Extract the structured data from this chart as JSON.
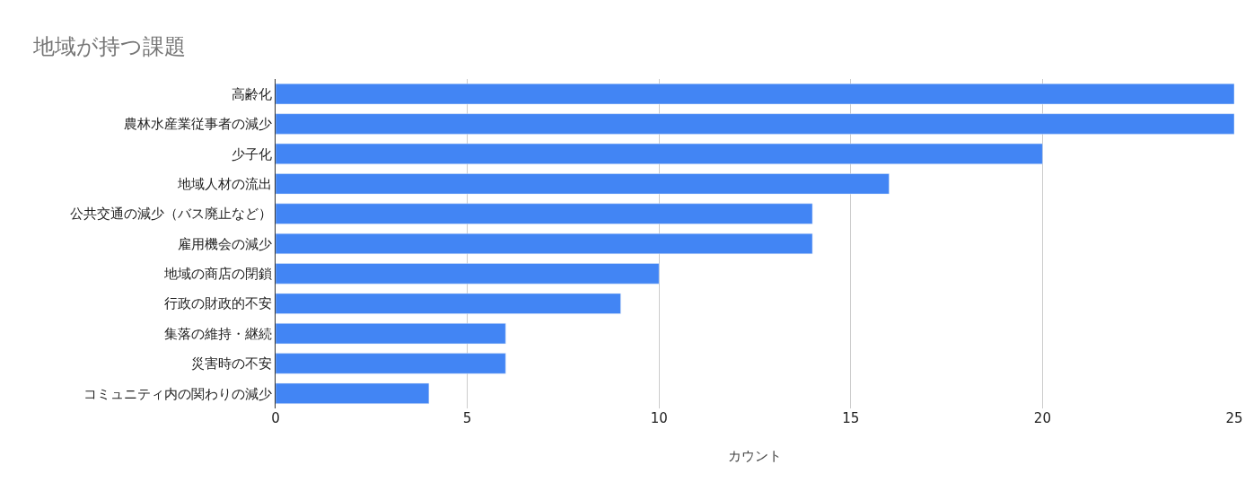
{
  "chart_data": {
    "type": "bar",
    "orientation": "horizontal",
    "title": "地域が持つ課題",
    "xlabel": "カウント",
    "categories": [
      "高齢化",
      "農林水産業従事者の減少",
      "少子化",
      "地域人材の流出",
      "公共交通の減少（バス廃止など）",
      "雇用機会の減少",
      "地域の商店の閉鎖",
      "行政の財政的不安",
      "集落の維持・継続",
      "災害時の不安",
      "コミュニティ内の関わりの減少"
    ],
    "values": [
      25,
      25,
      20,
      16,
      14,
      14,
      10,
      9,
      6,
      6,
      4
    ],
    "color": "#4285f4",
    "xlim": [
      0,
      25
    ],
    "xticks": [
      0,
      5,
      10,
      15,
      20,
      25
    ],
    "grid": "x"
  }
}
